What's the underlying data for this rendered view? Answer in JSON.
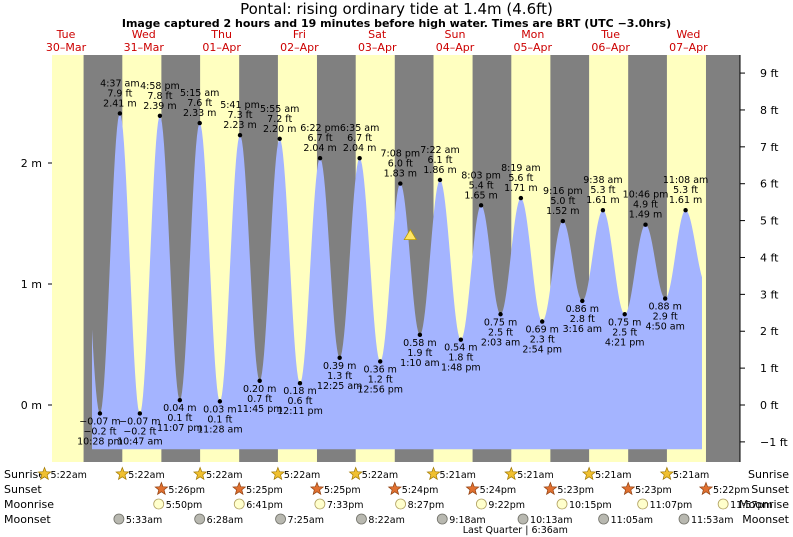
{
  "title": "Pontal: rising  ordinary tide at 1.4m (4.6ft)",
  "subtitle": "Image captured 2 hours and 19 minutes before high water. Times are BRT (UTC −3.0hrs)",
  "colors": {
    "day": "#ffffc0",
    "night": "#808080",
    "water": "#a4b4ff",
    "axis_label": "#000000",
    "day_label": "#cc0000",
    "marker": "#ffe566"
  },
  "days": [
    {
      "dow": "Tue",
      "date": "30–Mar"
    },
    {
      "dow": "Wed",
      "date": "31–Mar"
    },
    {
      "dow": "Thu",
      "date": "01–Apr"
    },
    {
      "dow": "Fri",
      "date": "02–Apr"
    },
    {
      "dow": "Sat",
      "date": "03–Apr"
    },
    {
      "dow": "Sun",
      "date": "04–Apr"
    },
    {
      "dow": "Mon",
      "date": "05–Apr"
    },
    {
      "dow": "Tue",
      "date": "06–Apr"
    },
    {
      "dow": "Wed",
      "date": "07–Apr"
    }
  ],
  "chart_data": {
    "type": "area",
    "y_left_label": "m",
    "y_right_label": "ft",
    "y_left_ticks": [
      "0 m",
      "1 m",
      "2 m"
    ],
    "y_right_ticks": [
      "−1 ft",
      "0 ft",
      "1 ft",
      "2 ft",
      "3 ft",
      "4 ft",
      "5 ft",
      "6 ft",
      "7 ft",
      "8 ft",
      "9 ft"
    ],
    "ylim_m": [
      -0.3,
      2.35
    ],
    "x_start_day": 0.32,
    "x_end_day": 8.95,
    "tides": [
      {
        "t": "10:28 pm",
        "d": 0,
        "h": 22.47,
        "m": "−0.07 m",
        "f": "−0.2 ft",
        "v": -0.07,
        "type": "low"
      },
      {
        "t": "4:37 am",
        "d": 1,
        "h": 4.62,
        "m": "2.41 m",
        "f": "7.9 ft",
        "v": 2.41,
        "type": "high"
      },
      {
        "t": "10:47 am",
        "d": 1,
        "h": 10.78,
        "m": "−0.07 m",
        "f": "−0.2 ft",
        "v": -0.07,
        "type": "low"
      },
      {
        "t": "4:58 pm",
        "d": 1,
        "h": 16.97,
        "m": "2.39 m",
        "f": "7.8 ft",
        "v": 2.39,
        "type": "high"
      },
      {
        "t": "11:07 pm",
        "d": 1,
        "h": 23.12,
        "m": "0.04 m",
        "f": "0.1 ft",
        "v": 0.04,
        "type": "low"
      },
      {
        "t": "5:15 am",
        "d": 2,
        "h": 5.25,
        "m": "2.33 m",
        "f": "7.6 ft",
        "v": 2.33,
        "type": "high"
      },
      {
        "t": "11:28 am",
        "d": 2,
        "h": 11.47,
        "m": "0.03 m",
        "f": "0.1 ft",
        "v": 0.03,
        "type": "low"
      },
      {
        "t": "5:41 pm",
        "d": 2,
        "h": 17.68,
        "m": "2.23 m",
        "f": "7.3 ft",
        "v": 2.23,
        "type": "high"
      },
      {
        "t": "11:45 pm",
        "d": 2,
        "h": 23.75,
        "m": "0.20 m",
        "f": "0.7 ft",
        "v": 0.2,
        "type": "low"
      },
      {
        "t": "5:55 am",
        "d": 3,
        "h": 5.92,
        "m": "2.20 m",
        "f": "7.2 ft",
        "v": 2.2,
        "type": "high"
      },
      {
        "t": "12:11 pm",
        "d": 3,
        "h": 12.18,
        "m": "0.18 m",
        "f": "0.6 ft",
        "v": 0.18,
        "type": "low"
      },
      {
        "t": "6:22 pm",
        "d": 3,
        "h": 18.37,
        "m": "2.04 m",
        "f": "6.7 ft",
        "v": 2.04,
        "type": "high"
      },
      {
        "t": "12:25 am",
        "d": 4,
        "h": 0.42,
        "m": "0.39 m",
        "f": "1.3 ft",
        "v": 0.39,
        "type": "low"
      },
      {
        "t": "6:35 am",
        "d": 4,
        "h": 6.58,
        "m": "2.04 m",
        "f": "6.7 ft",
        "v": 2.04,
        "type": "high"
      },
      {
        "t": "12:56 pm",
        "d": 4,
        "h": 12.93,
        "m": "0.36 m",
        "f": "1.2 ft",
        "v": 0.36,
        "type": "low"
      },
      {
        "t": "7:08 pm",
        "d": 4,
        "h": 19.13,
        "m": "1.83 m",
        "f": "6.0 ft",
        "v": 1.83,
        "type": "high"
      },
      {
        "t": "1:10 am",
        "d": 5,
        "h": 1.17,
        "m": "0.58 m",
        "f": "1.9 ft",
        "v": 0.58,
        "type": "low"
      },
      {
        "t": "7:22 am",
        "d": 5,
        "h": 7.37,
        "m": "1.86 m",
        "f": "6.1 ft",
        "v": 1.86,
        "type": "high"
      },
      {
        "t": "1:48 pm",
        "d": 5,
        "h": 13.8,
        "m": "0.54 m",
        "f": "1.8 ft",
        "v": 0.54,
        "type": "low"
      },
      {
        "t": "8:03 pm",
        "d": 5,
        "h": 20.05,
        "m": "1.65 m",
        "f": "5.4 ft",
        "v": 1.65,
        "type": "high"
      },
      {
        "t": "2:03 am",
        "d": 6,
        "h": 2.05,
        "m": "0.75 m",
        "f": "2.5 ft",
        "v": 0.75,
        "type": "low"
      },
      {
        "t": "8:19 am",
        "d": 6,
        "h": 8.32,
        "m": "1.71 m",
        "f": "5.6 ft",
        "v": 1.71,
        "type": "high"
      },
      {
        "t": "2:54 pm",
        "d": 6,
        "h": 14.9,
        "m": "0.69 m",
        "f": "2.3 ft",
        "v": 0.69,
        "type": "low"
      },
      {
        "t": "9:16 pm",
        "d": 6,
        "h": 21.27,
        "m": "1.52 m",
        "f": "5.0 ft",
        "v": 1.52,
        "type": "high"
      },
      {
        "t": "3:16 am",
        "d": 7,
        "h": 3.27,
        "m": "0.86 m",
        "f": "2.8 ft",
        "v": 0.86,
        "type": "low"
      },
      {
        "t": "9:38 am",
        "d": 7,
        "h": 9.63,
        "m": "1.61 m",
        "f": "5.3 ft",
        "v": 1.61,
        "type": "high"
      },
      {
        "t": "4:21 pm",
        "d": 7,
        "h": 16.35,
        "m": "0.75 m",
        "f": "2.5 ft",
        "v": 0.75,
        "type": "low"
      },
      {
        "t": "10:46 pm",
        "d": 7,
        "h": 22.77,
        "m": "1.49 m",
        "f": "4.9 ft",
        "v": 1.49,
        "type": "high"
      },
      {
        "t": "4:50 am",
        "d": 8,
        "h": 4.83,
        "m": "0.88 m",
        "f": "2.9 ft",
        "v": 0.88,
        "type": "low"
      },
      {
        "t": "11:08 am",
        "d": 8,
        "h": 11.13,
        "m": "1.61 m",
        "f": "5.3 ft",
        "v": 1.61,
        "type": "high"
      }
    ],
    "current_marker_m": 1.4
  },
  "rows": {
    "sunrise": {
      "label": "Sunrise",
      "times": [
        "5:22am",
        "5:22am",
        "5:22am",
        "5:22am",
        "5:22am",
        "5:21am",
        "5:21am",
        "5:21am",
        "5:21am"
      ]
    },
    "sunset": {
      "label": "Sunset",
      "times": [
        "5:26pm",
        "5:25pm",
        "5:25pm",
        "5:24pm",
        "5:24pm",
        "5:23pm",
        "5:23pm",
        "5:22pm"
      ]
    },
    "moonrise": {
      "label": "Moonrise",
      "times": [
        "5:50pm",
        "6:41pm",
        "7:33pm",
        "8:27pm",
        "9:22pm",
        "10:15pm",
        "11:07pm",
        "11:57pm"
      ]
    },
    "moonset": {
      "label": "Moonset",
      "times": [
        "5:33am",
        "6:28am",
        "7:25am",
        "8:22am",
        "9:18am",
        "10:13am",
        "11:05am",
        "11:53am"
      ]
    },
    "moon_phase": "Last Quarter | 6:36am"
  }
}
